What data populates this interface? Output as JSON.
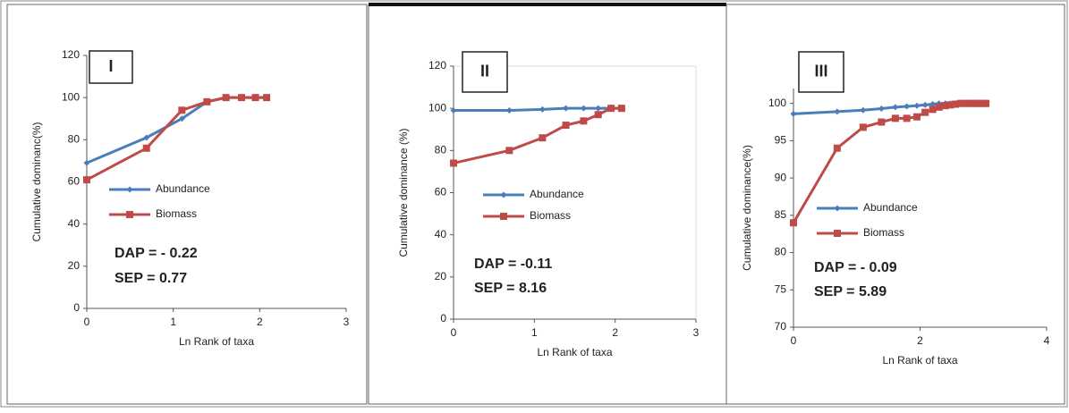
{
  "chart_data": [
    {
      "type": "line",
      "label": "I",
      "ylabel": "Cumulative dominanc(%)",
      "xlabel": "Ln Rank of taxa",
      "annotations": [
        "DAP = - 0.22",
        "SEP = 0.77"
      ],
      "xlim": [
        0,
        3
      ],
      "xticks": [
        0,
        1,
        2,
        3
      ],
      "ylim": [
        0,
        120
      ],
      "yticks": [
        0,
        20,
        40,
        60,
        80,
        100,
        120
      ],
      "x": [
        0,
        0.69,
        1.1,
        1.39,
        1.61,
        1.79,
        1.95,
        2.08
      ],
      "series": [
        {
          "name": "Abundance",
          "color": "#4a7ebb",
          "values": [
            69,
            81,
            90,
            98,
            100,
            100,
            100,
            100
          ]
        },
        {
          "name": "Biomass",
          "color": "#be4b48",
          "values": [
            61,
            76,
            94,
            98,
            100,
            100,
            100,
            100
          ]
        }
      ]
    },
    {
      "type": "line",
      "label": "II",
      "ylabel": "Cumulative dominance (%)",
      "xlabel": "Ln Rank of taxa",
      "annotations": [
        "DAP = -0.11",
        "SEP = 8.16"
      ],
      "xlim": [
        0,
        3
      ],
      "xticks": [
        0,
        1,
        2,
        3
      ],
      "ylim": [
        0,
        120
      ],
      "yticks": [
        0,
        20,
        40,
        60,
        80,
        100,
        120
      ],
      "x": [
        0,
        0.69,
        1.1,
        1.39,
        1.61,
        1.79,
        1.95,
        2.08
      ],
      "series": [
        {
          "name": "Abundance",
          "color": "#4a7ebb",
          "values": [
            99,
            99,
            99.5,
            100,
            100,
            100,
            100,
            100
          ]
        },
        {
          "name": "Biomass",
          "color": "#be4b48",
          "values": [
            74,
            80,
            86,
            92,
            94,
            97,
            100,
            100
          ]
        }
      ]
    },
    {
      "type": "line",
      "label": "III",
      "ylabel": "Cumulative dominance(%)",
      "xlabel": "Ln Rank of taxa",
      "annotations": [
        "DAP = - 0.09",
        "SEP = 5.89"
      ],
      "xlim": [
        0,
        4
      ],
      "xticks": [
        0,
        2,
        4
      ],
      "ylim": [
        70,
        102
      ],
      "yticks": [
        70,
        75,
        80,
        85,
        90,
        95,
        100
      ],
      "x": [
        0,
        0.69,
        1.1,
        1.39,
        1.61,
        1.79,
        1.95,
        2.08,
        2.2,
        2.3,
        2.4,
        2.48,
        2.56,
        2.64,
        2.71,
        2.77,
        2.83,
        2.89,
        2.94,
        3.0,
        3.04
      ],
      "series": [
        {
          "name": "Abundance",
          "color": "#4a7ebb",
          "values": [
            98.6,
            98.9,
            99.1,
            99.3,
            99.5,
            99.6,
            99.7,
            99.8,
            99.9,
            100,
            100,
            100,
            100,
            100,
            100,
            100,
            100,
            100,
            100,
            100,
            100
          ]
        },
        {
          "name": "Biomass",
          "color": "#be4b48",
          "values": [
            84,
            94,
            96.8,
            97.5,
            98,
            98,
            98.2,
            98.8,
            99.2,
            99.5,
            99.7,
            99.8,
            99.9,
            100,
            100,
            100,
            100,
            100,
            100,
            100,
            100
          ]
        }
      ]
    }
  ]
}
